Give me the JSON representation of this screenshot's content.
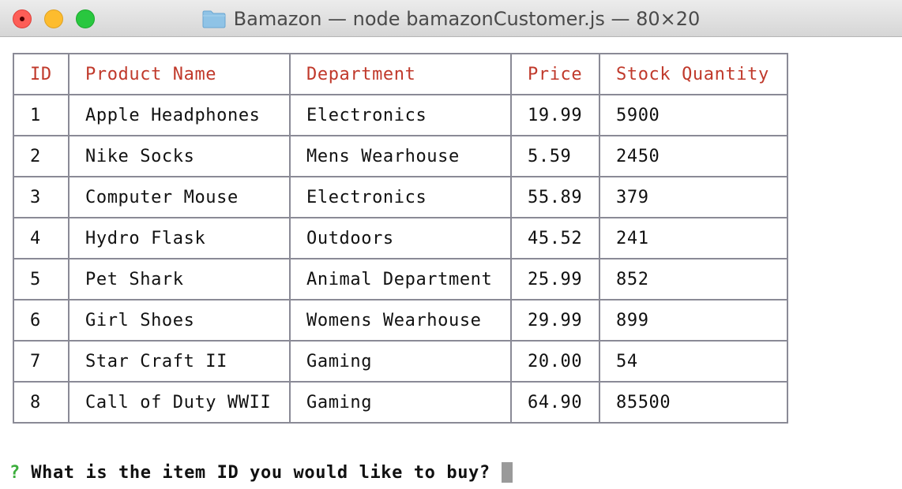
{
  "window": {
    "title": "Bamazon — node bamazonCustomer.js — 80×20",
    "folder_icon": "folder-icon",
    "controls": [
      "close",
      "minimize",
      "maximize"
    ],
    "colors": {
      "close": "#fd5e57",
      "minimize": "#fdbc2e",
      "maximize": "#29c73f"
    }
  },
  "table": {
    "header_color": "#c0392b",
    "headers": [
      "ID",
      "Product Name",
      "Department",
      "Price",
      "Stock Quantity"
    ],
    "rows": [
      [
        "1",
        "Apple Headphones",
        "Electronics",
        "19.99",
        "5900"
      ],
      [
        "2",
        "Nike Socks",
        "Mens Wearhouse",
        "5.59",
        "2450"
      ],
      [
        "3",
        "Computer Mouse",
        "Electronics",
        "55.89",
        "379"
      ],
      [
        "4",
        "Hydro Flask",
        "Outdoors",
        "45.52",
        "241"
      ],
      [
        "5",
        "Pet Shark",
        "Animal Department",
        "25.99",
        "852"
      ],
      [
        "6",
        "Girl Shoes",
        "Womens Wearhouse",
        "29.99",
        "899"
      ],
      [
        "7",
        "Star Craft II",
        "Gaming",
        "20.00",
        "54"
      ],
      [
        "8",
        "Call of Duty WWII",
        "Gaming",
        "64.90",
        "85500"
      ]
    ]
  },
  "prompt": {
    "mark": "?",
    "mark_color": "#3cae3c",
    "question": "What is the item ID you would like to buy?",
    "input_value": ""
  }
}
